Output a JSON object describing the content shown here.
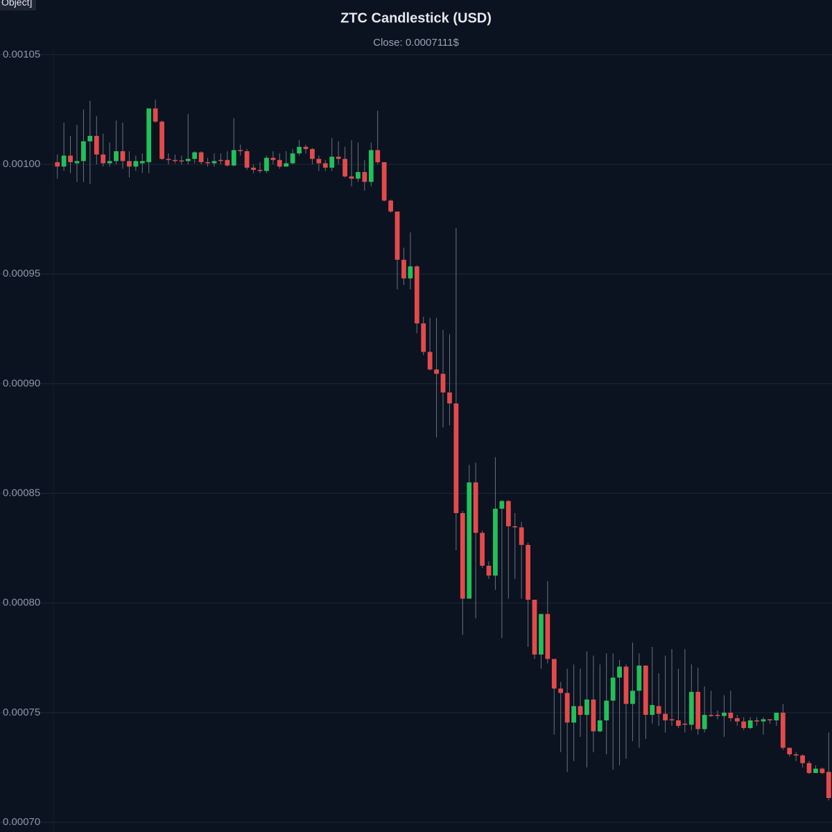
{
  "corner_label": "Object]",
  "chart_data": {
    "type": "candlestick",
    "title": "ZTC Candlestick (USD)",
    "subtitle": "Close: 0.0007111$",
    "up_color": "#22c05a",
    "down_color": "#e34a4a",
    "wick_color": "#6b7280",
    "grid": true,
    "ylim": [
      0.0006956,
      0.0010623
    ],
    "yticks": [
      {
        "value": 0.0007,
        "label": "0.00070"
      },
      0.00075,
      {
        "value": 0.0008,
        "label": "0.00080"
      },
      0.00085,
      {
        "value": 0.0009,
        "label": "0.00090"
      },
      0.00095,
      {
        "value": 0.001,
        "label": "0.00100"
      },
      0.00105
    ],
    "open": [
      0.001001,
      0.000999,
      0.001004,
      0.0010005,
      0.0010015,
      0.0010105,
      0.001013,
      0.0010045,
      0.0010005,
      0.0010015,
      0.001006,
      0.0010015,
      0.000999,
      0.0010005,
      0.001001,
      0.0010255,
      0.0010195,
      0.0010025,
      0.001002,
      0.0010018,
      0.0010015,
      0.0010025,
      0.0010055,
      0.001001,
      0.0010005,
      0.001002,
      0.001002,
      0.0009995,
      0.0010065,
      0.001006,
      0.0009985,
      0.0009975,
      0.000997,
      0.001003,
      0.001002,
      0.000999,
      0.0010005,
      0.001005,
      0.001008,
      0.001007,
      0.0010025,
      0.0010005,
      0.0009985,
      0.0010035,
      0.0010025,
      0.0009945,
      0.0009935,
      0.0009965,
      0.000992,
      0.0010065,
      0.001001,
      0.0009835,
      0.0009785,
      0.0009565,
      0.000948,
      0.0009535,
      0.0009275,
      0.0009145,
      0.0009065,
      0.0009045,
      0.000896,
      0.000891,
      0.000841,
      0.000802,
      0.000855,
      0.000832,
      0.000817,
      0.0008125,
      0.000843,
      0.0008465,
      0.000835,
      0.0008345,
      0.0008265,
      0.0008015,
      0.0007765,
      0.000795,
      0.0007745,
      0.000761,
      0.000759,
      0.0007455,
      0.000753,
      0.000749,
      0.000756,
      0.0007415,
      0.0007465,
      0.0007555,
      0.000766,
      0.000771,
      0.000754,
      0.00076,
      0.0007715,
      0.000749,
      0.000753,
      0.0007495,
      0.000747,
      0.0007465,
      0.000745,
      0.0007445,
      0.0007595,
      0.0007425,
      0.000749,
      0.000749,
      0.0007485,
      0.00075,
      0.0007475,
      0.000746,
      0.000743,
      0.0007465,
      0.000746,
      0.000747,
      0.0007465,
      0.00075,
      0.000734,
      0.000731,
      0.0007305,
      0.000727,
      0.0007225,
      0.0007245,
      0.000723
    ],
    "high": [
      0.0010045,
      0.001019,
      0.001013,
      0.001018,
      0.001025,
      0.001029,
      0.001022,
      0.001014,
      0.00101,
      0.00102,
      0.001019,
      0.001006,
      0.001004,
      0.001005,
      0.0010255,
      0.0010295,
      0.00102,
      0.001005,
      0.0010045,
      0.001004,
      0.001023,
      0.001006,
      0.001006,
      0.001003,
      0.001005,
      0.001005,
      0.001006,
      0.001021,
      0.001009,
      0.001007,
      0.001,
      0.001001,
      0.001004,
      0.001006,
      0.001005,
      0.001006,
      0.001007,
      0.001011,
      0.001009,
      0.0010075,
      0.001004,
      0.001002,
      0.001012,
      0.0010105,
      0.001008,
      0.001011,
      0.00101,
      0.001002,
      0.00101,
      0.0010245,
      0.001001,
      0.000984,
      0.0009785,
      0.000962,
      0.000969,
      0.000954,
      0.0009305,
      0.00093,
      0.00093,
      0.0009245,
      0.0009225,
      0.000971,
      0.000842,
      0.000863,
      0.000864,
      0.000833,
      0.000819,
      0.0008665,
      0.000847,
      0.000847,
      0.000841,
      0.000837,
      0.0008275,
      0.0008015,
      0.000795,
      0.00081,
      0.0007745,
      0.000764,
      0.00077,
      0.000772,
      0.00077,
      0.000778,
      0.000776,
      0.000772,
      0.000777,
      0.000777,
      0.000774,
      0.000772,
      0.000782,
      0.000777,
      0.0007715,
      0.00078,
      0.000768,
      0.000776,
      0.000779,
      0.00077,
      0.000779,
      0.000772,
      0.0007705,
      0.000762,
      0.00076,
      0.000751,
      0.000758,
      0.00076,
      0.000749,
      0.000748,
      0.000748,
      0.000748,
      0.000748,
      0.000747,
      0.00075,
      0.000754,
      0.000734,
      0.000732,
      0.000731,
      0.000728,
      0.000726,
      0.000725,
      0.000741
    ],
    "low": [
      0.0009935,
      0.000997,
      0.000996,
      0.000992,
      0.000992,
      0.000991,
      0.001,
      0.000999,
      0.000999,
      0.001,
      0.000998,
      0.000994,
      0.000997,
      0.000996,
      0.000996,
      0.001019,
      0.001002,
      0.001,
      0.0010005,
      0.001,
      0.001,
      0.0010005,
      0.001,
      0.000999,
      0.000999,
      0.001,
      0.000999,
      0.000999,
      0.001004,
      0.0009975,
      0.000996,
      0.000996,
      0.000996,
      0.001,
      0.000998,
      0.000999,
      0.001,
      0.001004,
      0.001005,
      0.001,
      0.000997,
      0.000997,
      0.000997,
      0.001,
      0.000994,
      0.00099,
      0.000992,
      0.000988,
      0.00099,
      0.001,
      0.000983,
      0.000978,
      0.000943,
      0.000945,
      0.000943,
      0.000923,
      0.000913,
      0.000906,
      0.0008755,
      0.00088,
      0.000881,
      0.000824,
      0.0007855,
      0.000802,
      0.000793,
      0.000816,
      0.000811,
      0.000806,
      0.000784,
      0.000802,
      0.000811,
      0.000802,
      0.00078,
      0.0007745,
      0.00077,
      0.0007725,
      0.00074,
      0.000732,
      0.000723,
      0.000728,
      0.000739,
      0.000725,
      0.000732,
      0.000741,
      0.000731,
      0.000724,
      0.000726,
      0.000729,
      0.000737,
      0.000734,
      0.000738,
      0.000745,
      0.000744,
      0.000741,
      0.000744,
      0.000743,
      0.000741,
      0.000742,
      0.00074,
      0.000741,
      0.000748,
      0.000747,
      0.000739,
      0.000746,
      0.000744,
      0.000742,
      0.0007425,
      0.000744,
      0.00074,
      0.000745,
      0.000744,
      0.000733,
      0.00073,
      0.000728,
      0.000725,
      0.000722,
      0.0007225,
      0.000722,
      0.00071
    ],
    "close": [
      0.000999,
      0.001004,
      0.001001,
      0.0010015,
      0.0010105,
      0.001013,
      0.0010045,
      0.0010005,
      0.0010015,
      0.001006,
      0.0010015,
      0.000999,
      0.0010015,
      0.0010015,
      0.0010255,
      0.0010195,
      0.0010025,
      0.001002,
      0.0010015,
      0.0010015,
      0.0010025,
      0.0010055,
      0.001001,
      0.0010005,
      0.0010015,
      0.0010018,
      0.0009995,
      0.0010065,
      0.001006,
      0.0009985,
      0.0009975,
      0.000997,
      0.001003,
      0.001002,
      0.000999,
      0.0010005,
      0.001005,
      0.001008,
      0.001007,
      0.0010025,
      0.0010005,
      0.0009985,
      0.0010035,
      0.0010025,
      0.0009945,
      0.0009935,
      0.0009965,
      0.000992,
      0.0010065,
      0.001001,
      0.0009835,
      0.0009785,
      0.0009565,
      0.000948,
      0.0009535,
      0.0009275,
      0.0009145,
      0.0009065,
      0.0009045,
      0.000896,
      0.000891,
      0.000841,
      0.000802,
      0.000855,
      0.000832,
      0.000817,
      0.0008125,
      0.000843,
      0.0008465,
      0.000835,
      0.0008345,
      0.0008265,
      0.0008015,
      0.0007765,
      0.000795,
      0.0007745,
      0.000761,
      0.000759,
      0.0007455,
      0.000753,
      0.000749,
      0.000756,
      0.0007415,
      0.0007465,
      0.0007555,
      0.000766,
      0.000771,
      0.000754,
      0.00076,
      0.0007715,
      0.000749,
      0.0007535,
      0.0007495,
      0.0007465,
      0.0007465,
      0.000744,
      0.0007445,
      0.0007595,
      0.0007425,
      0.000749,
      0.0007485,
      0.0007485,
      0.00075,
      0.0007475,
      0.000746,
      0.000743,
      0.0007465,
      0.000746,
      0.000747,
      0.0007465,
      0.00075,
      0.000734,
      0.000731,
      0.0007305,
      0.000727,
      0.0007225,
      0.0007245,
      0.0007225,
      0.0007111
    ]
  }
}
